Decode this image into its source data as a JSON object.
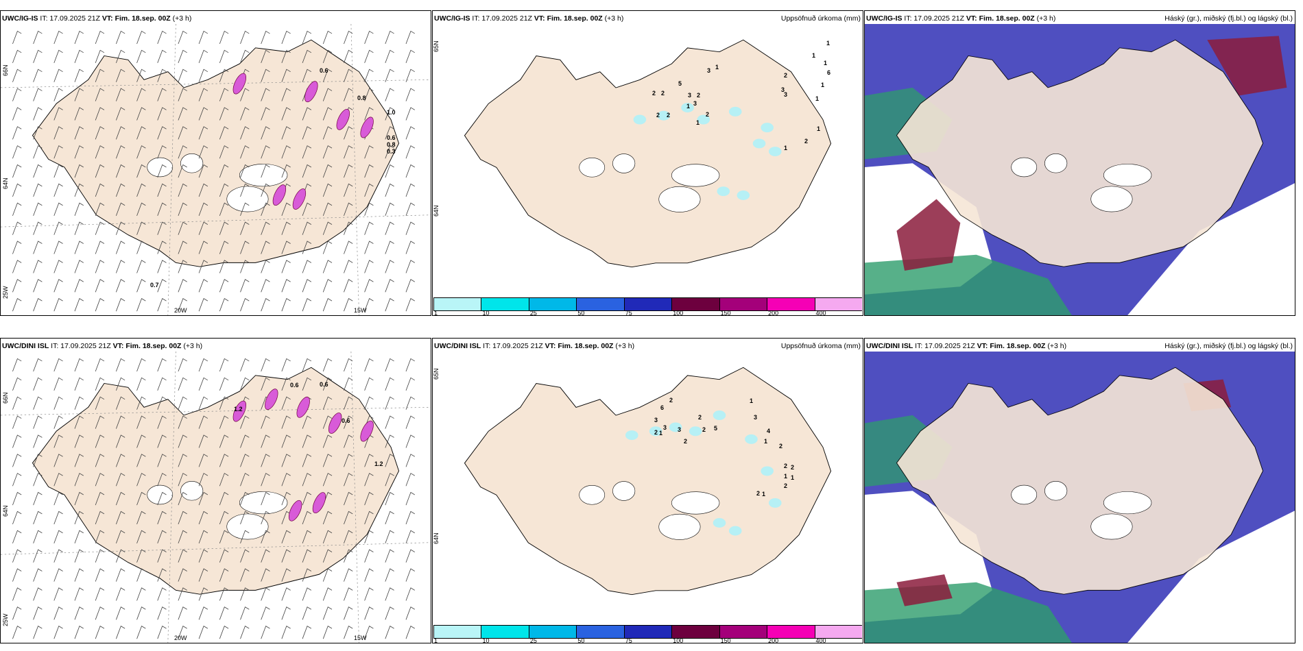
{
  "panels": [
    {
      "model": "UWC/IG-IS",
      "it": "IT: 17.09.2025 21Z",
      "vt_label": "VT:",
      "vt": "Fim. 18.sep. 00Z",
      "lead": "(+3 h)",
      "right": ""
    },
    {
      "model": "UWC/IG-IS",
      "it": "IT: 17.09.2025 21Z",
      "vt_label": "VT:",
      "vt": "Fim. 18.sep. 00Z",
      "lead": "(+3 h)",
      "right": "Uppsöfnuð úrkoma (mm)"
    },
    {
      "model": "UWC/IG-IS",
      "it": "IT: 17.09.2025 21Z",
      "vt_label": "VT:",
      "vt": "Fim. 18.sep. 00Z",
      "lead": "(+3 h)",
      "right": "Háský (gr.), miðský (fj.bl.) og lágský (bl.)"
    },
    {
      "model": "UWC/DINI ISL",
      "it": "IT: 17.09.2025 21Z",
      "vt_label": "VT:",
      "vt": "Fim. 18.sep. 00Z",
      "lead": "(+3 h)",
      "right": ""
    },
    {
      "model": "UWC/DINI ISL",
      "it": "IT: 17.09.2025 21Z",
      "vt_label": "VT:",
      "vt": "Fim. 18.sep. 00Z",
      "lead": "(+3 h)",
      "right": "Uppsöfnuð úrkoma (mm)"
    },
    {
      "model": "UWC/DINI ISL",
      "it": "IT: 17.09.2025 21Z",
      "vt_label": "VT:",
      "vt": "Fim. 18.sep. 00Z",
      "lead": "(+3 h)",
      "right": "Háský (gr.), miðský (fj.bl.) og lágský (bl.)"
    }
  ],
  "axes": {
    "lat_top": "66N",
    "lat_mid": "64N",
    "lat_bot": "25W",
    "lat_mid2": "65N",
    "lon1": "20W",
    "lon2": "15W"
  },
  "colorbar": {
    "ticks": [
      "1",
      "10",
      "25",
      "50",
      "75",
      "100",
      "150",
      "200",
      "400"
    ],
    "colors": [
      "#b9f5f7",
      "#00e5ea",
      "#00b8e8",
      "#2a62e0",
      "#2029b8",
      "#6d003e",
      "#a4007a",
      "#f500b5",
      "#f5a9f0"
    ]
  },
  "colors": {
    "land": "#f6e6d6",
    "cloud_mid": "#4f4fc0",
    "cloud_high": "#2d9c6b",
    "cloud_low": "#8b1c3c",
    "precip": "#b6f0f5",
    "wind": "#444444"
  },
  "values_top_precip": [
    "1",
    "2",
    "2",
    "2",
    "5",
    "3",
    "1",
    "2",
    "2",
    "3",
    "3",
    "2",
    "1",
    "1",
    "1",
    "1",
    "6",
    "1",
    "3",
    "3",
    "2",
    "1",
    "1",
    "2",
    "1"
  ],
  "values_top_wind": [
    "0.6",
    "0.8",
    "1.0",
    "0.6",
    "0.8",
    "0.3",
    "0.7"
  ],
  "values_bottom_precip": [
    "2",
    "6",
    "3",
    "3",
    "1",
    "2",
    "2",
    "3",
    "2",
    "2",
    "5",
    "1",
    "3",
    "4",
    "1",
    "2",
    "2",
    "2",
    "1",
    "1",
    "2",
    "2",
    "1"
  ],
  "values_bottom_wind": [
    "0.6",
    "0.6",
    "1.2",
    "0.6",
    "1.2"
  ]
}
